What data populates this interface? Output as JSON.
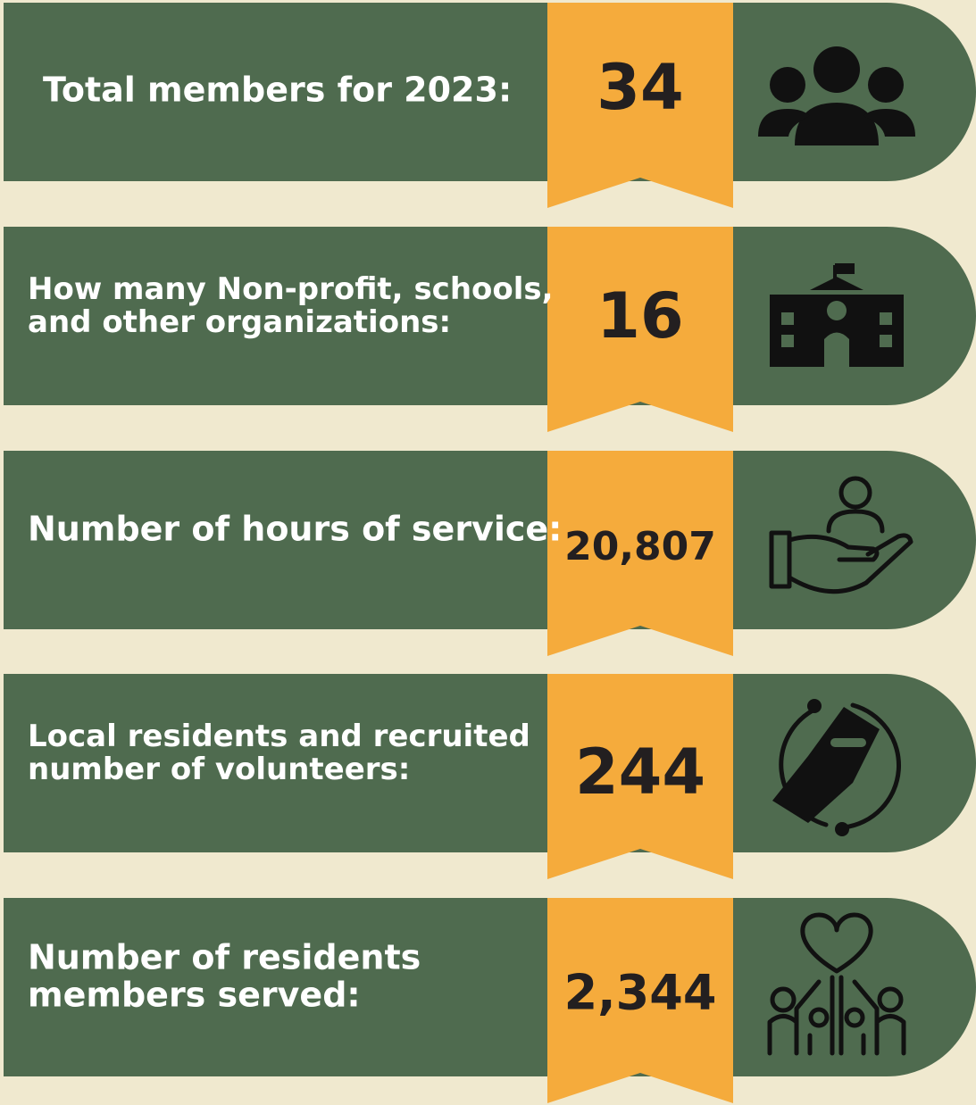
{
  "items": [
    {
      "label": [
        "Total members for 2023:"
      ],
      "value": "34"
    },
    {
      "label": [
        "How many Non-profit, schools,",
        "and other organizations:"
      ],
      "value": "16"
    },
    {
      "label": [
        "Number of hours of service:"
      ],
      "value": "20,807"
    },
    {
      "label": [
        "Local residents and recruited",
        "number of volunteers:"
      ],
      "value": "244"
    },
    {
      "label": [
        "Number of residents",
        "members served:"
      ],
      "value": "2,344"
    }
  ]
}
